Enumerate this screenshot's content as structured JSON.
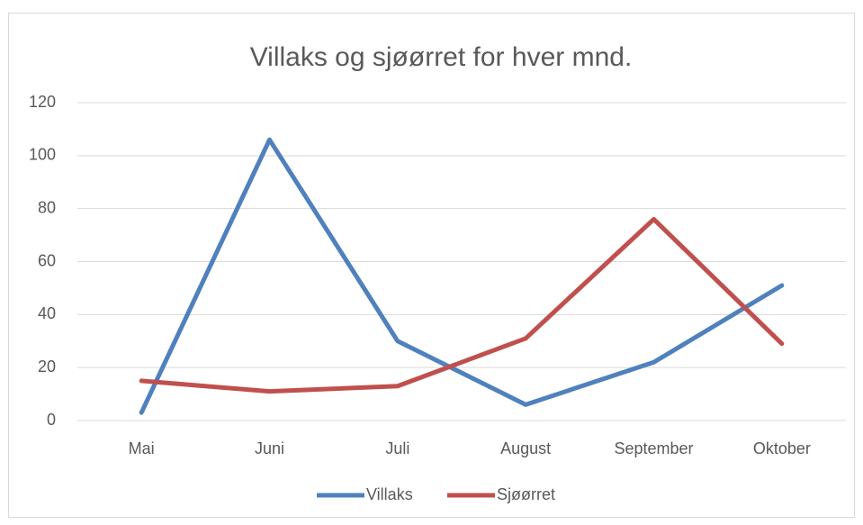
{
  "chart_data": {
    "type": "line",
    "title": "Villaks og sjøørret for hver mnd.",
    "categories": [
      "Mai",
      "Juni",
      "Juli",
      "August",
      "September",
      "Oktober"
    ],
    "series": [
      {
        "name": "Villaks",
        "color": "#4f81bd",
        "values": [
          3,
          106,
          30,
          6,
          22,
          51
        ]
      },
      {
        "name": "Sjøørret",
        "color": "#c0504d",
        "values": [
          15,
          11,
          13,
          31,
          76,
          29
        ]
      }
    ],
    "ylim": [
      0,
      120
    ],
    "yticks": [
      0,
      20,
      40,
      60,
      80,
      100,
      120
    ],
    "grid": true,
    "legend": "bottom"
  }
}
